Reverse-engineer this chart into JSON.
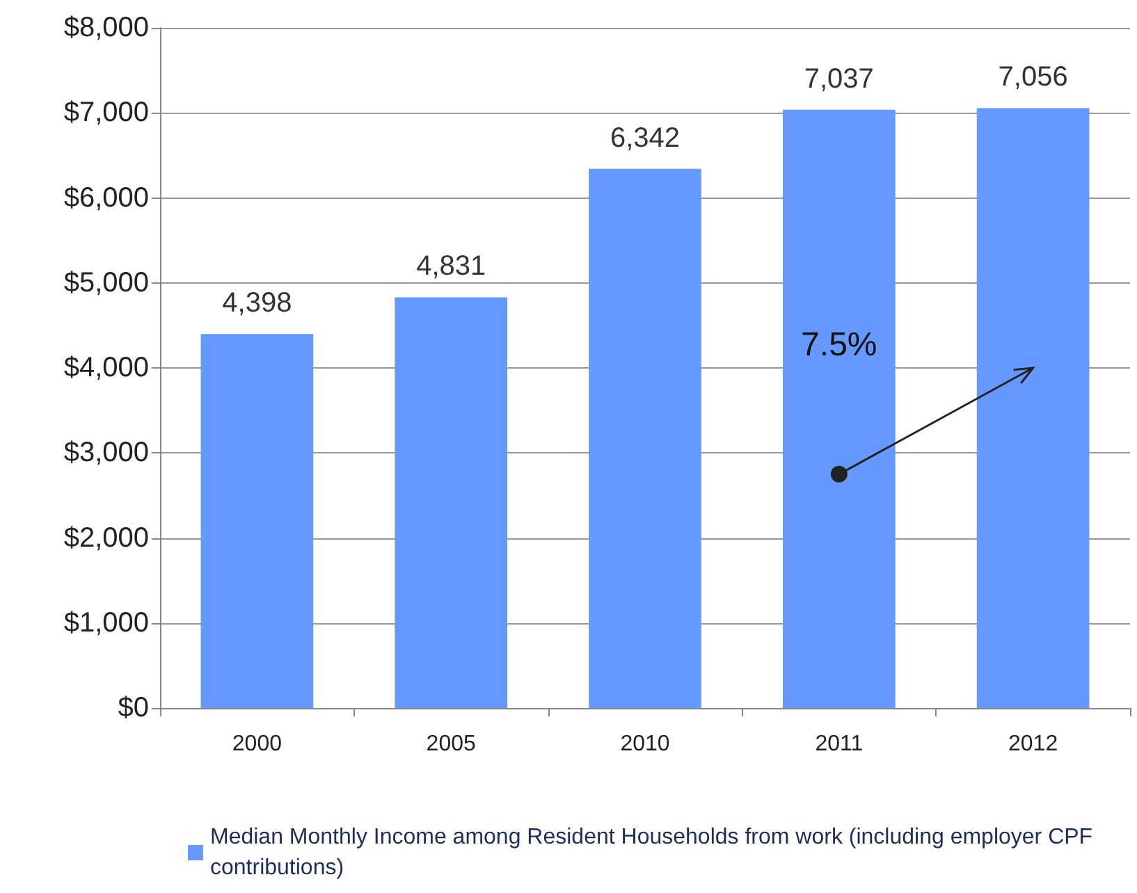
{
  "chart_data": {
    "type": "bar",
    "categories": [
      "2000",
      "2005",
      "2010",
      "2011",
      "2012"
    ],
    "series": [
      {
        "name": "Median Monthly Income among Resident Households from work (including employer CPF contributions)",
        "color": "#6699ff",
        "values": [
          4398,
          4831,
          6342,
          7037,
          7056
        ]
      }
    ],
    "value_labels": [
      "4,398",
      "4,831",
      "6,342",
      "7,037",
      "7,056"
    ],
    "ylim": [
      0,
      8000
    ],
    "yticks": [
      {
        "value": 0,
        "label": "$0"
      },
      {
        "value": 1000,
        "label": "$1,000"
      },
      {
        "value": 2000,
        "label": "$2,000"
      },
      {
        "value": 3000,
        "label": "$3,000"
      },
      {
        "value": 4000,
        "label": "$4,000"
      },
      {
        "value": 5000,
        "label": "$5,000"
      },
      {
        "value": 6000,
        "label": "$6,000"
      },
      {
        "value": 7000,
        "label": "$7,000"
      },
      {
        "value": 8000,
        "label": "$8,000"
      }
    ],
    "grid": "y",
    "legend": "bottom",
    "annotations": [
      "7.5%"
    ]
  }
}
